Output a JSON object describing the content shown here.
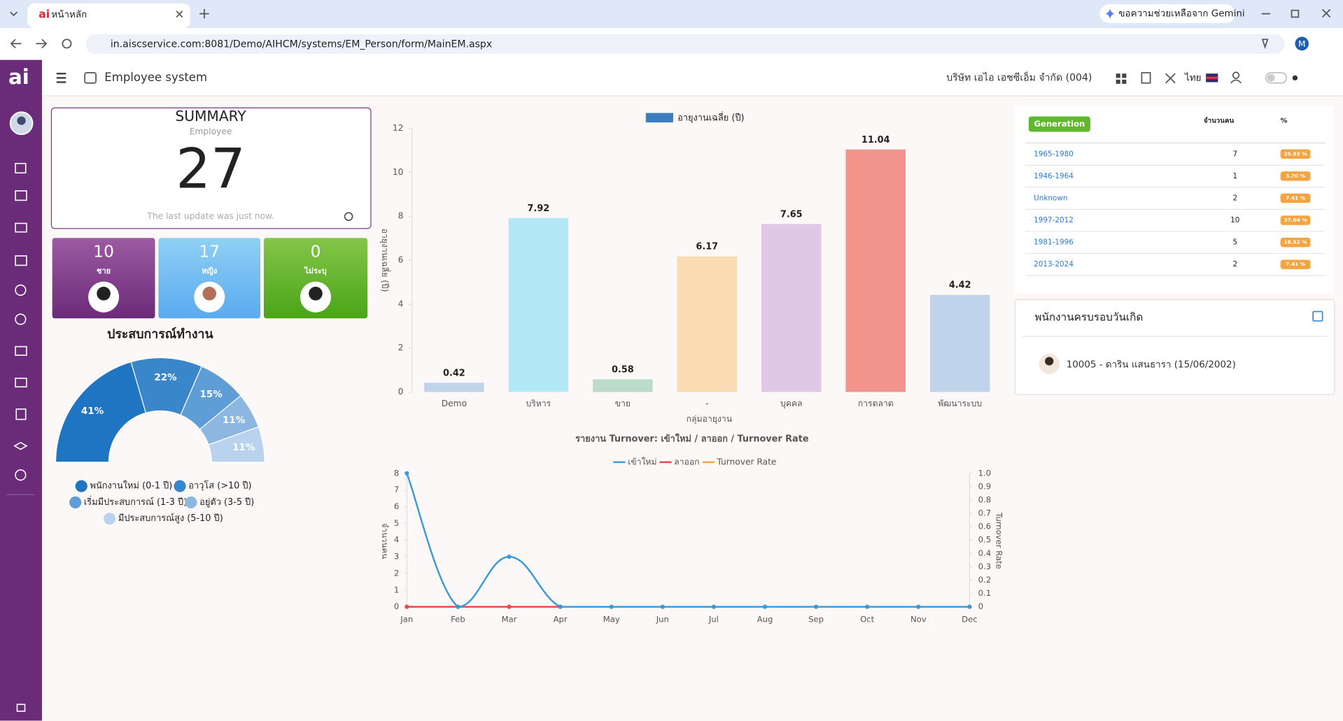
{
  "browser": {
    "tab_title": "หน้าหลัก",
    "gemini": "ขอความช่วยเหลือจาก Gemini",
    "url": "in.aiscservice.com:8081/Demo/AIHCM/systems/EM_Person/form/MainEM.aspx",
    "profile": "M"
  },
  "header": {
    "logo": "ai",
    "app": "Employee system",
    "company": "บริษัท เอไอ เอชซีเอ็ม จำกัด (004)",
    "lang": "ไทย"
  },
  "summary": {
    "title": "SUMMARY",
    "subtitle": "Employee",
    "total": 27,
    "update": "The last update was just now."
  },
  "gender": [
    {
      "count": 10,
      "label": "ชาย"
    },
    {
      "count": 17,
      "label": "หญิง"
    },
    {
      "count": 0,
      "label": "ไม่ระบุ"
    }
  ],
  "experience": {
    "type": "pie",
    "title": "ประสบการณ์ทำงาน",
    "categories": [
      "พนักงานใหม่ (0-1 ปี)",
      "อาวุโส (>10 ปี)",
      "เริ่มมีประสบการณ์ (1-3 ปี)",
      "อยู่ตัว (3-5 ปี)",
      "มีประสบการณ์สูง (5-10 ปี)"
    ],
    "values": [
      41,
      22,
      15,
      11,
      11
    ],
    "value_labels": [
      "41%",
      "22%",
      "15%",
      "11%",
      "11%"
    ],
    "colors": [
      "#1f75c2",
      "#3a86cb",
      "#5f9dd6",
      "#8cb7e1",
      "#b9d3ee"
    ]
  },
  "bar_chart": {
    "type": "bar",
    "series_name": "อายุงานเฉลี่ย (ปี)",
    "legend_color": "#3d7ec0",
    "y_label": "อายุงานเฉลี่ย (ปี)",
    "x_label": "กลุ่มอายุงาน",
    "categories": [
      "Demo",
      "บริหาร",
      "ขาย",
      "-",
      "บุคคล",
      "การตลาด",
      "พัฒนาระบบ"
    ],
    "values": [
      0.42,
      7.92,
      0.58,
      6.17,
      7.65,
      11.04,
      4.42
    ],
    "colors": [
      "#bfd4ea",
      "#b3e9f6",
      "#bcdcc9",
      "#fbdcb2",
      "#dfc7e6",
      "#f2938c",
      "#bfd4ea"
    ],
    "ylim": [
      0,
      12
    ],
    "yticks": [
      0,
      2,
      4,
      6,
      8,
      10,
      12
    ],
    "grid": false
  },
  "line_chart": {
    "type": "line",
    "title": "รายงาน Turnover: เข้าใหม่ / ลาออก / Turnover Rate",
    "y_label": "จำนวนคน",
    "y2_label": "Turnover Rate",
    "categories": [
      "Jan",
      "Feb",
      "Mar",
      "Apr",
      "May",
      "Jun",
      "Jul",
      "Aug",
      "Sep",
      "Oct",
      "Nov",
      "Dec"
    ],
    "series": [
      {
        "name": "เข้าใหม่",
        "color": "#3a9ad9",
        "values": [
          8,
          0,
          3,
          0,
          0,
          0,
          0,
          0,
          0,
          0,
          0,
          0
        ]
      },
      {
        "name": "ลาออก",
        "color": "#e8474c",
        "values": [
          0,
          0,
          0,
          0,
          null,
          null,
          null,
          null,
          null,
          null,
          null,
          null
        ]
      },
      {
        "name": "Turnover Rate",
        "color": "#f5a24a",
        "axis": "y2",
        "values": [
          0,
          0,
          0,
          0,
          0,
          0,
          0,
          0,
          0,
          0,
          0,
          0
        ]
      }
    ],
    "ylim": [
      0,
      8
    ],
    "yticks": [
      0,
      1,
      2,
      3,
      4,
      5,
      6,
      7,
      8
    ],
    "y2lim": [
      0,
      1
    ],
    "y2ticks": [
      0,
      0.1,
      0.2,
      0.3,
      0.4,
      0.5,
      0.6,
      0.7,
      0.8,
      0.9,
      {
        "value": 1,
        "label": "1.0"
      }
    ],
    "grid": false
  },
  "generation": {
    "headers": [
      "Generation",
      "จำนวนคน",
      "%"
    ],
    "rows": [
      [
        "1965-1980",
        "7",
        "25.93 %"
      ],
      [
        "1946-1964",
        "1",
        "3.70 %"
      ],
      [
        "Unknown",
        "2",
        "7.41 %"
      ],
      [
        "1997-2012",
        "10",
        "37.04 %"
      ],
      [
        "1981-1996",
        "5",
        "18.52 %"
      ],
      [
        "2013-2024",
        "2",
        "7.41 %"
      ]
    ]
  },
  "birthday": {
    "title": "พนักงานครบรอบวันเกิด",
    "entry": "10005 - ดาริน แสนธารา (15/06/2002)"
  }
}
